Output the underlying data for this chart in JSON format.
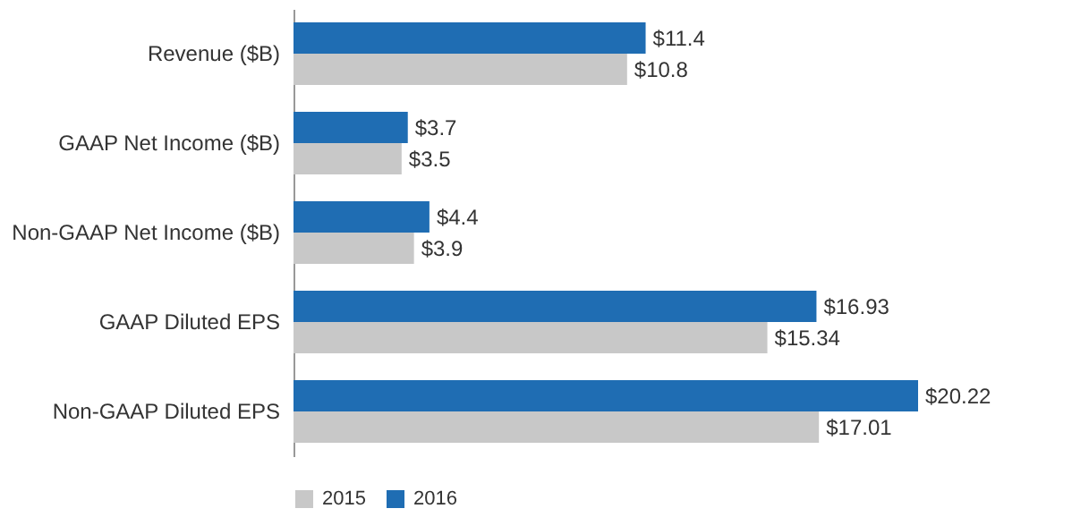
{
  "chart_data": {
    "type": "bar",
    "orientation": "horizontal",
    "categories": [
      "Revenue ($B)",
      "GAAP Net Income ($B)",
      "Non-GAAP Net Income ($B)",
      "GAAP Diluted EPS",
      "Non-GAAP Diluted EPS"
    ],
    "series": [
      {
        "name": "2015",
        "color": "#c8c8c8",
        "values": [
          10.8,
          3.5,
          3.9,
          15.34,
          17.01
        ],
        "value_labels": [
          "$10.8",
          "$3.5",
          "$3.9",
          "$15.34",
          "$17.01"
        ]
      },
      {
        "name": "2016",
        "color": "#1f6db3",
        "values": [
          11.4,
          3.7,
          4.4,
          16.93,
          20.22
        ],
        "value_labels": [
          "$11.4",
          "$3.7",
          "$4.4",
          "$16.93",
          "$20.22"
        ]
      }
    ],
    "legend": "bottom",
    "grid": false
  }
}
